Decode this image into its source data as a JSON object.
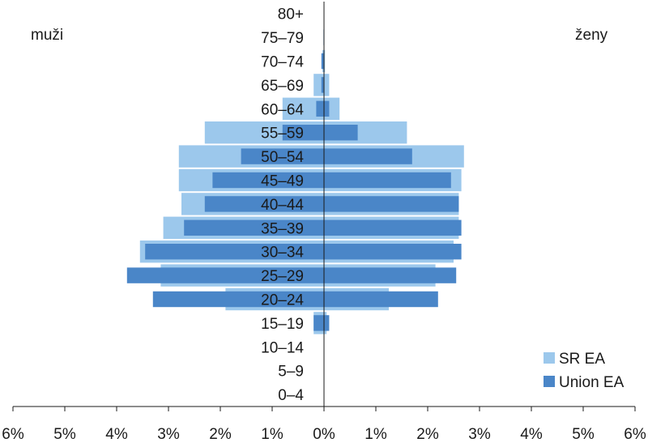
{
  "chart_data": {
    "type": "bar",
    "orientation": "horizontal-population-pyramid",
    "left_label": "muži",
    "right_label": "ženy",
    "categories": [
      "80+",
      "75–79",
      "70–74",
      "65–69",
      "60–64",
      "55–59",
      "50–54",
      "45–49",
      "40–44",
      "35–39",
      "30–34",
      "25–29",
      "20–24",
      "15–19",
      "10–14",
      "5–9",
      "0–4"
    ],
    "xlim": [
      -6,
      6
    ],
    "x_ticks": [
      "6%",
      "5%",
      "4%",
      "3%",
      "2%",
      "1%",
      "0%",
      "1%",
      "2%",
      "3%",
      "4%",
      "5%",
      "6%"
    ],
    "series": [
      {
        "name": "SR EA",
        "color": "#9cc8ec",
        "muzi": [
          0.0,
          0.0,
          0.03,
          0.2,
          0.8,
          2.3,
          2.8,
          2.8,
          2.75,
          3.1,
          3.55,
          3.15,
          1.9,
          0.2,
          0.0,
          0.0,
          0.0
        ],
        "zeny": [
          0.0,
          0.0,
          0.02,
          0.1,
          0.3,
          1.6,
          2.7,
          2.65,
          2.6,
          2.6,
          2.5,
          2.15,
          1.25,
          0.05,
          0.0,
          0.0,
          0.0
        ]
      },
      {
        "name": "Union EA",
        "color": "#4a86c8",
        "muzi": [
          0.0,
          0.01,
          0.05,
          0.05,
          0.15,
          0.8,
          1.6,
          2.15,
          2.3,
          2.7,
          3.45,
          3.8,
          3.3,
          0.2,
          0.0,
          0.0,
          0.0
        ],
        "zeny": [
          0.0,
          0.0,
          0.0,
          0.0,
          0.1,
          0.65,
          1.7,
          2.45,
          2.6,
          2.65,
          2.65,
          2.55,
          2.2,
          0.1,
          0.0,
          0.0,
          0.0
        ]
      }
    ],
    "legend": {
      "position": "bottom-right",
      "entries": [
        "SR EA",
        "Union EA"
      ]
    }
  }
}
